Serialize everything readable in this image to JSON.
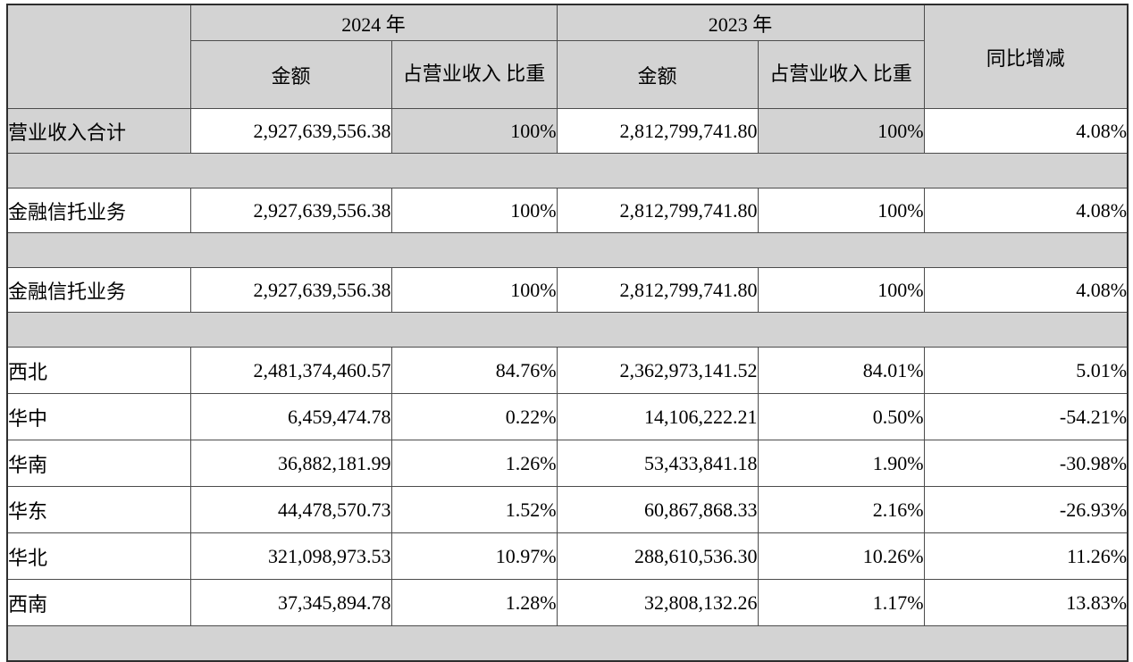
{
  "table": {
    "header": {
      "year_2024": "2024 年",
      "year_2023": "2023 年",
      "amount": "金额",
      "pct": "占营业收入\n比重",
      "yoy": "同比增减"
    },
    "colors": {
      "shading": "#d3d3d3",
      "border": "#4c4c4c",
      "text": "#000000"
    },
    "rows": [
      {
        "type": "data",
        "shaded": true,
        "label": "营业收入合计",
        "amount_2024": "2,927,639,556.38",
        "pct_2024": "100%",
        "amount_2023": "2,812,799,741.80",
        "pct_2023": "100%",
        "yoy": "4.08%"
      },
      {
        "type": "separator"
      },
      {
        "type": "data",
        "shaded": false,
        "label": "金融信托业务",
        "amount_2024": "2,927,639,556.38",
        "pct_2024": "100%",
        "amount_2023": "2,812,799,741.80",
        "pct_2023": "100%",
        "yoy": "4.08%"
      },
      {
        "type": "separator"
      },
      {
        "type": "data",
        "shaded": false,
        "label": "金融信托业务",
        "amount_2024": "2,927,639,556.38",
        "pct_2024": "100%",
        "amount_2023": "2,812,799,741.80",
        "pct_2023": "100%",
        "yoy": "4.08%"
      },
      {
        "type": "separator"
      },
      {
        "type": "data",
        "shaded": false,
        "region": true,
        "label": "西北",
        "amount_2024": "2,481,374,460.57",
        "pct_2024": "84.76%",
        "amount_2023": "2,362,973,141.52",
        "pct_2023": "84.01%",
        "yoy": "5.01%"
      },
      {
        "type": "data",
        "shaded": false,
        "region": true,
        "label": "华中",
        "amount_2024": "6,459,474.78",
        "pct_2024": "0.22%",
        "amount_2023": "14,106,222.21",
        "pct_2023": "0.50%",
        "yoy": "-54.21%"
      },
      {
        "type": "data",
        "shaded": false,
        "region": true,
        "label": "华南",
        "amount_2024": "36,882,181.99",
        "pct_2024": "1.26%",
        "amount_2023": "53,433,841.18",
        "pct_2023": "1.90%",
        "yoy": "-30.98%"
      },
      {
        "type": "data",
        "shaded": false,
        "region": true,
        "label": "华东",
        "amount_2024": "44,478,570.73",
        "pct_2024": "1.52%",
        "amount_2023": "60,867,868.33",
        "pct_2023": "2.16%",
        "yoy": "-26.93%"
      },
      {
        "type": "data",
        "shaded": false,
        "region": true,
        "label": "华北",
        "amount_2024": "321,098,973.53",
        "pct_2024": "10.97%",
        "amount_2023": "288,610,536.30",
        "pct_2023": "10.26%",
        "yoy": "11.26%"
      },
      {
        "type": "data",
        "shaded": false,
        "region": true,
        "label": "西南",
        "amount_2024": "37,345,894.78",
        "pct_2024": "1.28%",
        "amount_2023": "32,808,132.26",
        "pct_2023": "1.17%",
        "yoy": "13.83%"
      },
      {
        "type": "separator"
      }
    ]
  }
}
